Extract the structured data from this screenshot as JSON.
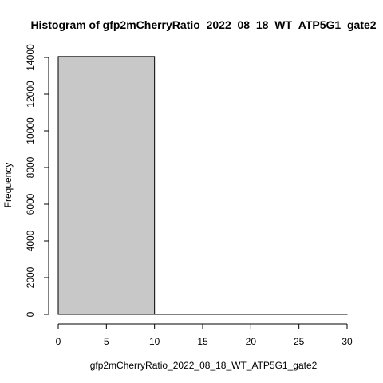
{
  "chart_data": {
    "type": "bar",
    "title": "Histogram of gfp2mCherryRatio_2022_08_18_WT_ATP5G1_gate2",
    "xlabel": "gfp2mCherryRatio_2022_08_18_WT_ATP5G1_gate2",
    "ylabel": "Frequency",
    "bins": [
      {
        "start": 0,
        "end": 10,
        "count": 14050
      },
      {
        "start": 10,
        "end": 20,
        "count": 3
      },
      {
        "start": 20,
        "end": 30,
        "count": 1
      }
    ],
    "xlim": [
      0,
      30
    ],
    "ylim": [
      0,
      14000
    ],
    "xticks": [
      0,
      5,
      10,
      15,
      20,
      25,
      30
    ],
    "yticks": [
      0,
      2000,
      4000,
      6000,
      8000,
      10000,
      12000,
      14000
    ],
    "bar_fill": "#c8c8c8",
    "bar_stroke": "#000000",
    "grid": false,
    "legend": "none"
  }
}
